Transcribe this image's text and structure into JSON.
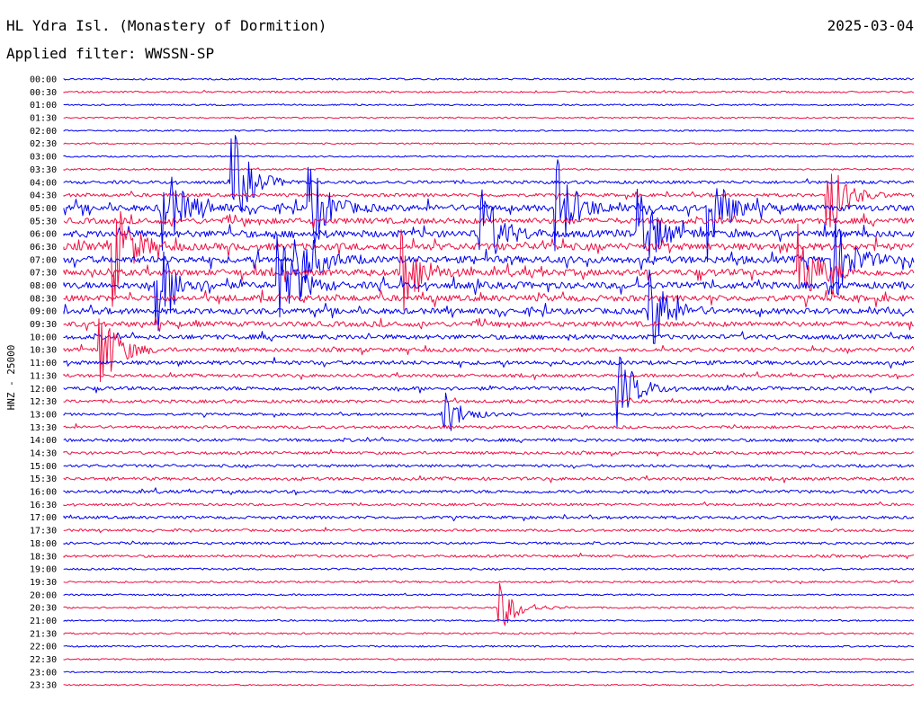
{
  "header": {
    "station": "HL Ydra Isl. (Monastery of Dormition)",
    "date": "2025-03-04",
    "filter_label": "Applied filter: WWSSN-SP"
  },
  "channel_label": "HNZ - 25000",
  "colors": {
    "even_row": "#0000ee",
    "odd_row": "#ee1144"
  },
  "chart_data": {
    "type": "line",
    "title": "HL Ydra Isl. (Monastery of Dormition)",
    "date": "2025-03-04",
    "filter": "WWSSN-SP",
    "ylabel": "HNZ - 25000",
    "rows": [
      {
        "time": "00:00",
        "activity": 0.12
      },
      {
        "time": "00:30",
        "activity": 0.12
      },
      {
        "time": "01:00",
        "activity": 0.08
      },
      {
        "time": "01:30",
        "activity": 0.06
      },
      {
        "time": "02:00",
        "activity": 0.06
      },
      {
        "time": "02:30",
        "activity": 0.06
      },
      {
        "time": "03:00",
        "activity": 0.08
      },
      {
        "time": "03:30",
        "activity": 0.1
      },
      {
        "time": "04:00",
        "activity": 0.35
      },
      {
        "time": "04:30",
        "activity": 0.4
      },
      {
        "time": "05:00",
        "activity": 0.9
      },
      {
        "time": "05:30",
        "activity": 0.8
      },
      {
        "time": "06:00",
        "activity": 1.0
      },
      {
        "time": "06:30",
        "activity": 1.0
      },
      {
        "time": "07:00",
        "activity": 1.0
      },
      {
        "time": "07:30",
        "activity": 0.9
      },
      {
        "time": "08:00",
        "activity": 0.95
      },
      {
        "time": "08:30",
        "activity": 0.85
      },
      {
        "time": "09:00",
        "activity": 0.8
      },
      {
        "time": "09:30",
        "activity": 0.7
      },
      {
        "time": "10:00",
        "activity": 0.6
      },
      {
        "time": "10:30",
        "activity": 0.5
      },
      {
        "time": "11:00",
        "activity": 0.5
      },
      {
        "time": "11:30",
        "activity": 0.35
      },
      {
        "time": "12:00",
        "activity": 0.45
      },
      {
        "time": "12:30",
        "activity": 0.35
      },
      {
        "time": "13:00",
        "activity": 0.25
      },
      {
        "time": "13:30",
        "activity": 0.3
      },
      {
        "time": "14:00",
        "activity": 0.35
      },
      {
        "time": "14:30",
        "activity": 0.3
      },
      {
        "time": "15:00",
        "activity": 0.3
      },
      {
        "time": "15:30",
        "activity": 0.35
      },
      {
        "time": "16:00",
        "activity": 0.35
      },
      {
        "time": "16:30",
        "activity": 0.25
      },
      {
        "time": "17:00",
        "activity": 0.3
      },
      {
        "time": "17:30",
        "activity": 0.25
      },
      {
        "time": "18:00",
        "activity": 0.25
      },
      {
        "time": "18:30",
        "activity": 0.25
      },
      {
        "time": "19:00",
        "activity": 0.15
      },
      {
        "time": "19:30",
        "activity": 0.15
      },
      {
        "time": "20:00",
        "activity": 0.1
      },
      {
        "time": "20:30",
        "activity": 0.12
      },
      {
        "time": "21:00",
        "activity": 0.08
      },
      {
        "time": "21:30",
        "activity": 0.1
      },
      {
        "time": "22:00",
        "activity": 0.1
      },
      {
        "time": "22:30",
        "activity": 0.06
      },
      {
        "time": "23:00",
        "activity": 0.05
      },
      {
        "time": "23:30",
        "activity": 0.05
      }
    ],
    "events": [
      {
        "time": "04:00",
        "minute": 6.0,
        "amp": 1.0
      },
      {
        "time": "04:30",
        "minute": 27.0,
        "amp": 0.8
      },
      {
        "time": "05:00",
        "minute": 8.7,
        "amp": 0.9
      },
      {
        "time": "05:00",
        "minute": 17.4,
        "amp": 1.0
      },
      {
        "time": "05:00",
        "minute": 22.8,
        "amp": 0.9
      },
      {
        "time": "05:00",
        "minute": 3.5,
        "amp": 1.0
      },
      {
        "time": "06:00",
        "minute": 14.7,
        "amp": 1.0
      },
      {
        "time": "06:00",
        "minute": 20.3,
        "amp": 1.0
      },
      {
        "time": "06:30",
        "minute": 1.8,
        "amp": 1.0
      },
      {
        "time": "07:00",
        "minute": 8.2,
        "amp": 1.0
      },
      {
        "time": "07:00",
        "minute": 27.1,
        "amp": 1.0
      },
      {
        "time": "07:30",
        "minute": 12.0,
        "amp": 0.8
      },
      {
        "time": "07:30",
        "minute": 26.0,
        "amp": 0.8
      },
      {
        "time": "08:00",
        "minute": 3.3,
        "amp": 1.0
      },
      {
        "time": "08:00",
        "minute": 7.6,
        "amp": 1.0
      },
      {
        "time": "09:00",
        "minute": 20.7,
        "amp": 0.9
      },
      {
        "time": "10:30",
        "minute": 1.3,
        "amp": 0.9
      },
      {
        "time": "12:00",
        "minute": 19.6,
        "amp": 0.7
      },
      {
        "time": "13:00",
        "minute": 13.4,
        "amp": 0.5
      },
      {
        "time": "20:30",
        "minute": 15.4,
        "amp": 0.5
      }
    ]
  }
}
